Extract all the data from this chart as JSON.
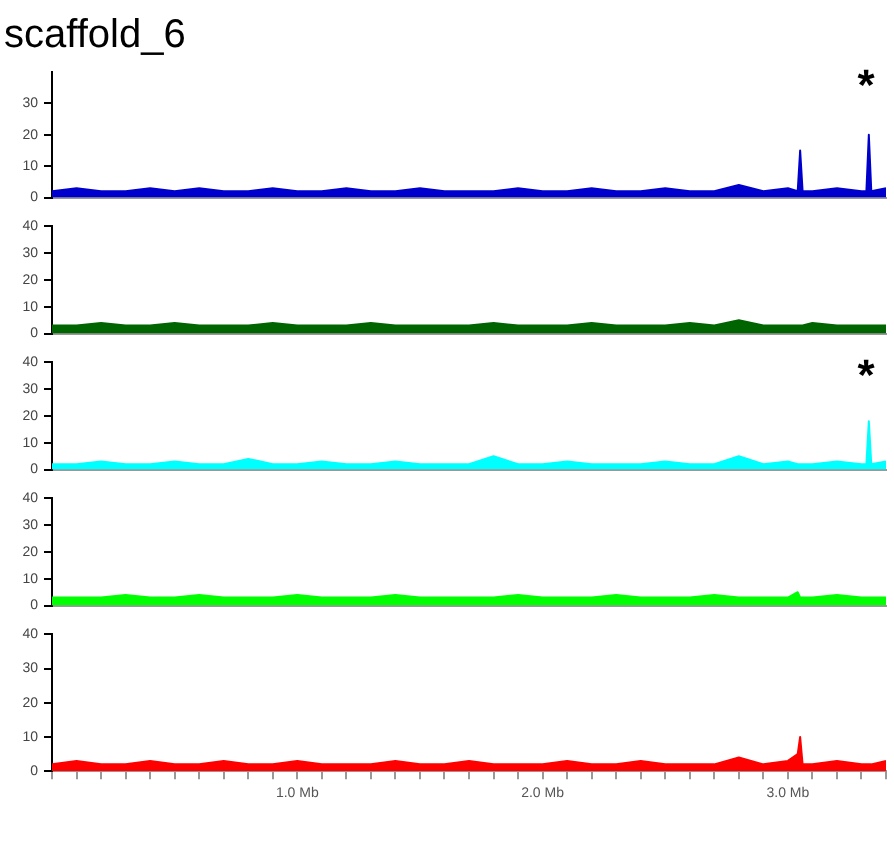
{
  "chart_data": [
    {
      "type": "area",
      "title": "scaffold_6",
      "x": [
        0,
        0.1,
        0.2,
        0.3,
        0.4,
        0.5,
        0.6,
        0.7,
        0.8,
        0.9,
        1.0,
        1.1,
        1.2,
        1.3,
        1.4,
        1.5,
        1.6,
        1.7,
        1.8,
        1.9,
        2.0,
        2.1,
        2.2,
        2.3,
        2.4,
        2.5,
        2.6,
        2.7,
        2.8,
        2.9,
        3.0,
        3.04,
        3.05,
        3.06,
        3.1,
        3.2,
        3.3,
        3.32,
        3.33,
        3.34,
        3.4
      ],
      "series": [
        {
          "color": "#0000cc",
          "values": [
            2,
            3,
            2,
            2,
            3,
            2,
            3,
            2,
            2,
            3,
            2,
            2,
            3,
            2,
            2,
            3,
            2,
            2,
            2,
            3,
            2,
            2,
            3,
            2,
            2,
            3,
            2,
            2,
            4,
            2,
            3,
            2,
            15,
            2,
            2,
            3,
            2,
            2,
            20,
            2,
            3
          ]
        }
      ],
      "xlim": [
        0,
        3.4
      ],
      "ylim": [
        0,
        40
      ],
      "yticks": [
        0,
        10,
        20,
        30
      ],
      "tick_labels": "y",
      "marker": "none",
      "grid": false,
      "legend": false,
      "annotations": [
        "*"
      ]
    },
    {
      "type": "area",
      "x": [
        0,
        0.1,
        0.2,
        0.3,
        0.4,
        0.5,
        0.6,
        0.7,
        0.8,
        0.9,
        1.0,
        1.1,
        1.2,
        1.3,
        1.4,
        1.5,
        1.6,
        1.7,
        1.8,
        1.9,
        2.0,
        2.1,
        2.2,
        2.3,
        2.4,
        2.5,
        2.6,
        2.7,
        2.8,
        2.9,
        3.0,
        3.04,
        3.05,
        3.06,
        3.1,
        3.2,
        3.3,
        3.32,
        3.33,
        3.34,
        3.4
      ],
      "series": [
        {
          "color": "#006400",
          "values": [
            3,
            3,
            4,
            3,
            3,
            4,
            3,
            3,
            3,
            4,
            3,
            3,
            3,
            4,
            3,
            3,
            3,
            3,
            4,
            3,
            3,
            3,
            4,
            3,
            3,
            3,
            4,
            3,
            5,
            3,
            3,
            3,
            3,
            3,
            4,
            3,
            3,
            3,
            3,
            3,
            3
          ]
        }
      ],
      "xlim": [
        0,
        3.4
      ],
      "ylim": [
        0,
        40
      ],
      "yticks": [
        0,
        10,
        20,
        30,
        40
      ],
      "tick_labels": "y",
      "marker": "none",
      "grid": false,
      "legend": false
    },
    {
      "type": "area",
      "x": [
        0,
        0.1,
        0.2,
        0.3,
        0.4,
        0.5,
        0.6,
        0.7,
        0.8,
        0.9,
        1.0,
        1.1,
        1.2,
        1.3,
        1.4,
        1.5,
        1.6,
        1.7,
        1.8,
        1.9,
        2.0,
        2.1,
        2.2,
        2.3,
        2.4,
        2.5,
        2.6,
        2.7,
        2.8,
        2.9,
        3.0,
        3.04,
        3.05,
        3.06,
        3.1,
        3.2,
        3.3,
        3.32,
        3.33,
        3.34,
        3.4
      ],
      "series": [
        {
          "color": "#00ffff",
          "values": [
            2,
            2,
            3,
            2,
            2,
            3,
            2,
            2,
            4,
            2,
            2,
            3,
            2,
            2,
            3,
            2,
            2,
            2,
            5,
            2,
            2,
            3,
            2,
            2,
            2,
            3,
            2,
            2,
            5,
            2,
            3,
            2,
            2,
            2,
            2,
            3,
            2,
            2,
            18,
            2,
            3
          ]
        }
      ],
      "xlim": [
        0,
        3.4
      ],
      "ylim": [
        0,
        40
      ],
      "yticks": [
        0,
        10,
        20,
        30,
        40
      ],
      "tick_labels": "y",
      "marker": "none",
      "grid": false,
      "legend": false,
      "annotations": [
        "*"
      ]
    },
    {
      "type": "area",
      "x": [
        0,
        0.1,
        0.2,
        0.3,
        0.4,
        0.5,
        0.6,
        0.7,
        0.8,
        0.9,
        1.0,
        1.1,
        1.2,
        1.3,
        1.4,
        1.5,
        1.6,
        1.7,
        1.8,
        1.9,
        2.0,
        2.1,
        2.2,
        2.3,
        2.4,
        2.5,
        2.6,
        2.7,
        2.8,
        2.9,
        3.0,
        3.04,
        3.05,
        3.06,
        3.1,
        3.2,
        3.3,
        3.32,
        3.33,
        3.34,
        3.4
      ],
      "series": [
        {
          "color": "#00ff00",
          "values": [
            3,
            3,
            3,
            4,
            3,
            3,
            4,
            3,
            3,
            3,
            4,
            3,
            3,
            3,
            4,
            3,
            3,
            3,
            3,
            4,
            3,
            3,
            3,
            4,
            3,
            3,
            3,
            4,
            3,
            3,
            3,
            5,
            3,
            3,
            3,
            4,
            3,
            3,
            3,
            3,
            3
          ]
        }
      ],
      "xlim": [
        0,
        3.4
      ],
      "ylim": [
        0,
        40
      ],
      "yticks": [
        0,
        10,
        20,
        30,
        40
      ],
      "tick_labels": "y",
      "marker": "none",
      "grid": false,
      "legend": false
    },
    {
      "type": "area",
      "x": [
        0,
        0.1,
        0.2,
        0.3,
        0.4,
        0.5,
        0.6,
        0.7,
        0.8,
        0.9,
        1.0,
        1.1,
        1.2,
        1.3,
        1.4,
        1.5,
        1.6,
        1.7,
        1.8,
        1.9,
        2.0,
        2.1,
        2.2,
        2.3,
        2.4,
        2.5,
        2.6,
        2.7,
        2.8,
        2.9,
        3.0,
        3.04,
        3.05,
        3.06,
        3.1,
        3.2,
        3.3,
        3.32,
        3.33,
        3.34,
        3.4
      ],
      "series": [
        {
          "color": "#ff0000",
          "values": [
            2,
            3,
            2,
            2,
            3,
            2,
            2,
            3,
            2,
            2,
            3,
            2,
            2,
            2,
            3,
            2,
            2,
            3,
            2,
            2,
            2,
            3,
            2,
            2,
            3,
            2,
            2,
            2,
            4,
            2,
            3,
            5,
            10,
            2,
            2,
            3,
            2,
            2,
            2,
            2,
            3
          ]
        }
      ],
      "xlim": [
        0,
        3.4
      ],
      "ylim": [
        0,
        40
      ],
      "yticks": [
        0,
        10,
        20,
        30,
        40
      ],
      "marker": "none",
      "grid": false,
      "legend": false,
      "xticks": [
        {
          "value": 0,
          "label": null
        },
        {
          "value": 0.1,
          "label": null
        },
        {
          "value": 0.2,
          "label": null
        },
        {
          "value": 0.3,
          "label": null
        },
        {
          "value": 0.4,
          "label": null
        },
        {
          "value": 0.5,
          "label": null
        },
        {
          "value": 0.6,
          "label": null
        },
        {
          "value": 0.7,
          "label": null
        },
        {
          "value": 0.8,
          "label": null
        },
        {
          "value": 0.9,
          "label": null
        },
        {
          "value": 1,
          "label": "1.0 Mb"
        },
        {
          "value": 1.1,
          "label": null
        },
        {
          "value": 1.2,
          "label": null
        },
        {
          "value": 1.3,
          "label": null
        },
        {
          "value": 1.4,
          "label": null
        },
        {
          "value": 1.5,
          "label": null
        },
        {
          "value": 1.6,
          "label": null
        },
        {
          "value": 1.7,
          "label": null
        },
        {
          "value": 1.8,
          "label": null
        },
        {
          "value": 1.9,
          "label": null
        },
        {
          "value": 2,
          "label": "2.0 Mb"
        },
        {
          "value": 2.1,
          "label": null
        },
        {
          "value": 2.2,
          "label": null
        },
        {
          "value": 2.3,
          "label": null
        },
        {
          "value": 2.4,
          "label": null
        },
        {
          "value": 2.5,
          "label": null
        },
        {
          "value": 2.6,
          "label": null
        },
        {
          "value": 2.7,
          "label": null
        },
        {
          "value": 2.8,
          "label": null
        },
        {
          "value": 2.9,
          "label": null
        },
        {
          "value": 3,
          "label": "3.0 Mb"
        },
        {
          "value": 3.1,
          "label": null
        },
        {
          "value": 3.2,
          "label": null
        },
        {
          "value": 3.3,
          "label": null
        },
        {
          "value": 3.4,
          "label": null
        }
      ]
    }
  ]
}
